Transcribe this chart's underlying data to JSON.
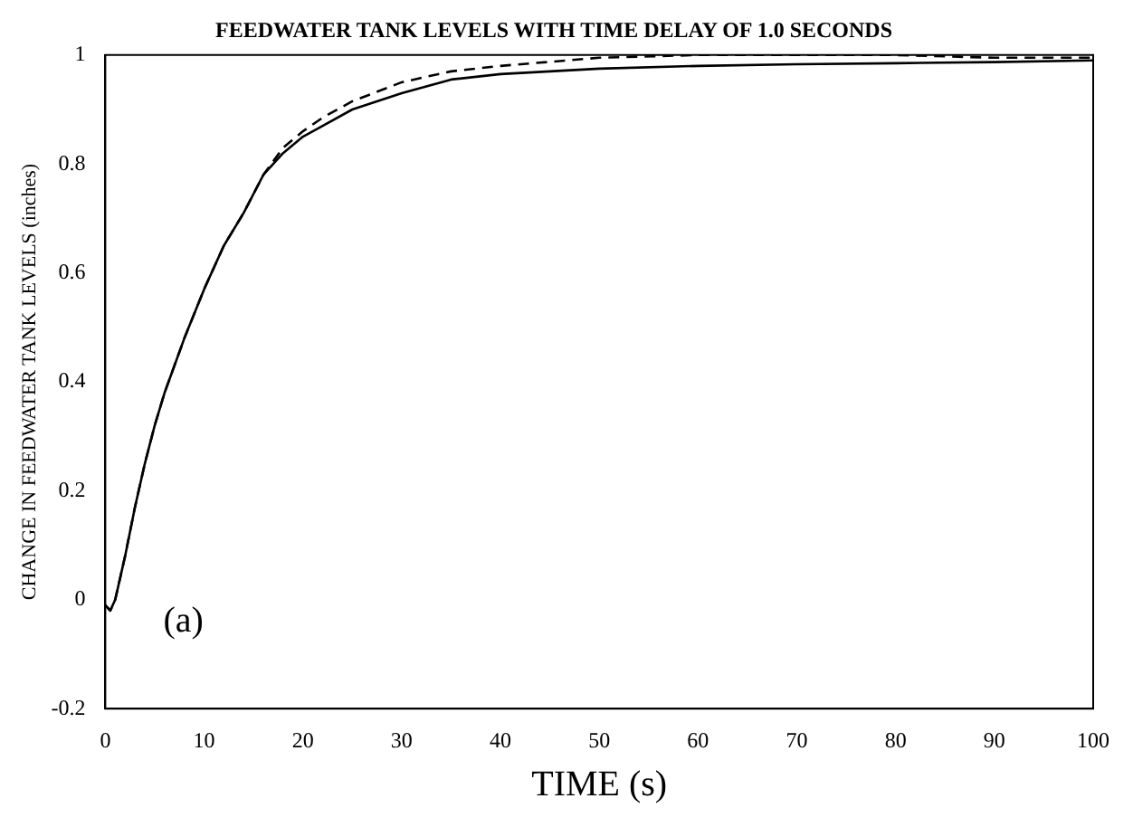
{
  "chart_data": {
    "type": "line",
    "title": "FEEDWATER TANK LEVELS WITH TIME DELAY OF 1.0 SECONDS",
    "xlabel": "TIME (s)",
    "ylabel": "CHANGE IN FEEDWATER TANK LEVELS (inches)",
    "annotations": [
      "(a)"
    ],
    "xlim": [
      0,
      100
    ],
    "xticks": [
      0,
      10,
      20,
      30,
      40,
      50,
      60,
      70,
      80,
      90,
      100
    ],
    "ylim": [
      -0.2,
      1
    ],
    "yticks": [
      -0.2,
      0,
      0.2,
      0.4,
      0.6,
      0.8,
      1
    ],
    "grid": false,
    "legend": false,
    "marker": "none",
    "series": [
      {
        "color": "#000000",
        "line_style": "solid",
        "x": [
          0,
          0.5,
          1,
          2,
          3,
          4,
          5,
          6,
          8,
          10,
          12,
          14,
          16,
          18,
          20,
          22,
          25,
          30,
          35,
          40,
          50,
          60,
          70,
          80,
          90,
          100
        ],
        "values": [
          -0.01,
          -0.02,
          0,
          0.08,
          0.17,
          0.25,
          0.32,
          0.38,
          0.48,
          0.57,
          0.65,
          0.71,
          0.78,
          0.82,
          0.85,
          0.87,
          0.9,
          0.93,
          0.955,
          0.965,
          0.975,
          0.98,
          0.983,
          0.985,
          0.987,
          0.99
        ]
      },
      {
        "color": "#000000",
        "line_style": "dashed",
        "x": [
          0,
          0.5,
          1,
          2,
          3,
          4,
          5,
          6,
          8,
          10,
          12,
          14,
          16,
          18,
          20,
          22,
          25,
          30,
          35,
          40,
          50,
          60,
          70,
          80,
          90,
          100
        ],
        "values": [
          -0.01,
          -0.02,
          0,
          0.08,
          0.17,
          0.25,
          0.32,
          0.38,
          0.48,
          0.57,
          0.65,
          0.71,
          0.78,
          0.83,
          0.86,
          0.885,
          0.915,
          0.95,
          0.97,
          0.98,
          0.995,
          1,
          1,
          1,
          0.995,
          0.995
        ]
      }
    ]
  }
}
